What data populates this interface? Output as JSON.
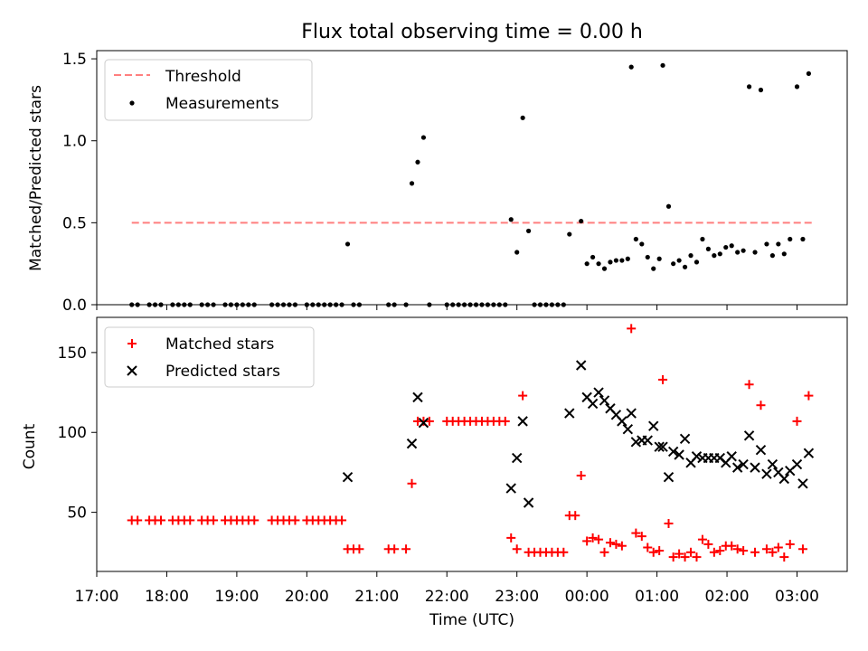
{
  "chart_data": [
    {
      "type": "scatter",
      "title": "Flux total observing time = 0.00 h",
      "xlabel": "",
      "ylabel": "Matched/Predicted stars",
      "ylim": [
        0,
        1.55
      ],
      "yticks": [
        0.0,
        0.5,
        1.0,
        1.5
      ],
      "ytick_labels": [
        "0.0",
        "0.5",
        "1.0",
        "1.5"
      ],
      "xlim": [
        "17:00",
        "03:43"
      ],
      "legend_position": "top-left",
      "threshold": {
        "name": "Threshold",
        "value": 0.5,
        "x": [
          "17:30",
          "03:15"
        ],
        "color": "#ff7f7f"
      },
      "series": [
        {
          "name": "Measurements",
          "color": "#000000",
          "marker": "dot",
          "points": [
            [
              "17:30",
              0
            ],
            [
              "17:35",
              0
            ],
            [
              "17:45",
              0
            ],
            [
              "17:50",
              0
            ],
            [
              "17:55",
              0
            ],
            [
              "18:05",
              0
            ],
            [
              "18:10",
              0
            ],
            [
              "18:15",
              0
            ],
            [
              "18:20",
              0
            ],
            [
              "18:30",
              0
            ],
            [
              "18:35",
              0
            ],
            [
              "18:40",
              0
            ],
            [
              "18:50",
              0
            ],
            [
              "18:55",
              0
            ],
            [
              "19:00",
              0
            ],
            [
              "19:05",
              0
            ],
            [
              "19:10",
              0
            ],
            [
              "19:15",
              0
            ],
            [
              "19:30",
              0
            ],
            [
              "19:35",
              0
            ],
            [
              "19:40",
              0
            ],
            [
              "19:45",
              0
            ],
            [
              "19:50",
              0
            ],
            [
              "20:00",
              0
            ],
            [
              "20:05",
              0
            ],
            [
              "20:10",
              0
            ],
            [
              "20:15",
              0
            ],
            [
              "20:20",
              0
            ],
            [
              "20:25",
              0
            ],
            [
              "20:30",
              0
            ],
            [
              "20:35",
              0.37
            ],
            [
              "20:40",
              0
            ],
            [
              "20:45",
              0
            ],
            [
              "21:10",
              0
            ],
            [
              "21:15",
              0
            ],
            [
              "21:25",
              0
            ],
            [
              "21:30",
              0.74
            ],
            [
              "21:35",
              0.87
            ],
            [
              "21:40",
              1.02
            ],
            [
              "21:45",
              0
            ],
            [
              "22:00",
              0
            ],
            [
              "22:05",
              0
            ],
            [
              "22:10",
              0
            ],
            [
              "22:15",
              0
            ],
            [
              "22:20",
              0
            ],
            [
              "22:25",
              0
            ],
            [
              "22:30",
              0
            ],
            [
              "22:35",
              0
            ],
            [
              "22:40",
              0
            ],
            [
              "22:45",
              0
            ],
            [
              "22:50",
              0
            ],
            [
              "22:55",
              0.52
            ],
            [
              "23:00",
              0.32
            ],
            [
              "23:05",
              1.14
            ],
            [
              "23:10",
              0.45
            ],
            [
              "23:15",
              0
            ],
            [
              "23:20",
              0
            ],
            [
              "23:25",
              0
            ],
            [
              "23:30",
              0
            ],
            [
              "23:35",
              0
            ],
            [
              "23:40",
              0
            ],
            [
              "23:45",
              0.43
            ],
            [
              "23:55",
              0.51
            ],
            [
              "00:00",
              0.25
            ],
            [
              "00:05",
              0.29
            ],
            [
              "00:10",
              0.25
            ],
            [
              "00:15",
              0.22
            ],
            [
              "00:20",
              0.26
            ],
            [
              "00:25",
              0.27
            ],
            [
              "00:30",
              0.27
            ],
            [
              "00:35",
              0.28
            ],
            [
              "00:38",
              1.45
            ],
            [
              "00:42",
              0.4
            ],
            [
              "00:47",
              0.37
            ],
            [
              "00:52",
              0.29
            ],
            [
              "00:57",
              0.22
            ],
            [
              "01:02",
              0.28
            ],
            [
              "01:05",
              1.46
            ],
            [
              "01:10",
              0.6
            ],
            [
              "01:14",
              0.25
            ],
            [
              "01:19",
              0.27
            ],
            [
              "01:24",
              0.23
            ],
            [
              "01:29",
              0.3
            ],
            [
              "01:34",
              0.26
            ],
            [
              "01:39",
              0.4
            ],
            [
              "01:44",
              0.34
            ],
            [
              "01:49",
              0.3
            ],
            [
              "01:54",
              0.31
            ],
            [
              "01:59",
              0.35
            ],
            [
              "02:04",
              0.36
            ],
            [
              "02:09",
              0.32
            ],
            [
              "02:14",
              0.33
            ],
            [
              "02:19",
              1.33
            ],
            [
              "02:24",
              0.32
            ],
            [
              "02:29",
              1.31
            ],
            [
              "02:34",
              0.37
            ],
            [
              "02:39",
              0.3
            ],
            [
              "02:44",
              0.37
            ],
            [
              "02:49",
              0.31
            ],
            [
              "02:54",
              0.4
            ],
            [
              "03:00",
              1.33
            ],
            [
              "03:05",
              0.4
            ],
            [
              "03:10",
              1.41
            ]
          ]
        }
      ]
    },
    {
      "type": "scatter",
      "title": "",
      "xlabel": "Time (UTC)",
      "ylabel": "Count",
      "ylim": [
        13,
        172
      ],
      "yticks": [
        50,
        100,
        150
      ],
      "ytick_labels": [
        "50",
        "100",
        "150"
      ],
      "xticks": [
        "17:00",
        "18:00",
        "19:00",
        "20:00",
        "21:00",
        "22:00",
        "23:00",
        "00:00",
        "01:00",
        "02:00",
        "03:00"
      ],
      "xtick_labels": [
        "17:00",
        "18:00",
        "19:00",
        "20:00",
        "21:00",
        "22:00",
        "23:00",
        "00:00",
        "01:00",
        "02:00",
        "03:00"
      ],
      "legend_position": "top-left",
      "series": [
        {
          "name": "Matched stars",
          "color": "#ff0000",
          "marker": "plus",
          "points": [
            [
              "17:30",
              45
            ],
            [
              "17:35",
              45
            ],
            [
              "17:45",
              45
            ],
            [
              "17:50",
              45
            ],
            [
              "17:55",
              45
            ],
            [
              "18:05",
              45
            ],
            [
              "18:10",
              45
            ],
            [
              "18:15",
              45
            ],
            [
              "18:20",
              45
            ],
            [
              "18:30",
              45
            ],
            [
              "18:35",
              45
            ],
            [
              "18:40",
              45
            ],
            [
              "18:50",
              45
            ],
            [
              "18:55",
              45
            ],
            [
              "19:00",
              45
            ],
            [
              "19:05",
              45
            ],
            [
              "19:10",
              45
            ],
            [
              "19:15",
              45
            ],
            [
              "19:30",
              45
            ],
            [
              "19:35",
              45
            ],
            [
              "19:40",
              45
            ],
            [
              "19:45",
              45
            ],
            [
              "19:50",
              45
            ],
            [
              "20:00",
              45
            ],
            [
              "20:05",
              45
            ],
            [
              "20:10",
              45
            ],
            [
              "20:15",
              45
            ],
            [
              "20:20",
              45
            ],
            [
              "20:25",
              45
            ],
            [
              "20:30",
              45
            ],
            [
              "20:35",
              27
            ],
            [
              "20:40",
              27
            ],
            [
              "20:45",
              27
            ],
            [
              "21:10",
              27
            ],
            [
              "21:15",
              27
            ],
            [
              "21:25",
              27
            ],
            [
              "21:30",
              68
            ],
            [
              "21:35",
              107
            ],
            [
              "21:40",
              107
            ],
            [
              "21:45",
              107
            ],
            [
              "22:00",
              107
            ],
            [
              "22:05",
              107
            ],
            [
              "22:10",
              107
            ],
            [
              "22:15",
              107
            ],
            [
              "22:20",
              107
            ],
            [
              "22:25",
              107
            ],
            [
              "22:30",
              107
            ],
            [
              "22:35",
              107
            ],
            [
              "22:40",
              107
            ],
            [
              "22:45",
              107
            ],
            [
              "22:50",
              107
            ],
            [
              "22:55",
              34
            ],
            [
              "23:00",
              27
            ],
            [
              "23:05",
              123
            ],
            [
              "23:10",
              25
            ],
            [
              "23:15",
              25
            ],
            [
              "23:20",
              25
            ],
            [
              "23:25",
              25
            ],
            [
              "23:30",
              25
            ],
            [
              "23:35",
              25
            ],
            [
              "23:40",
              25
            ],
            [
              "23:45",
              48
            ],
            [
              "23:50",
              48
            ],
            [
              "23:55",
              73
            ],
            [
              "00:00",
              32
            ],
            [
              "00:05",
              34
            ],
            [
              "00:10",
              33
            ],
            [
              "00:15",
              25
            ],
            [
              "00:20",
              31
            ],
            [
              "00:25",
              30
            ],
            [
              "00:30",
              29
            ],
            [
              "00:38",
              165
            ],
            [
              "00:42",
              37
            ],
            [
              "00:47",
              35
            ],
            [
              "00:52",
              28
            ],
            [
              "00:57",
              25
            ],
            [
              "01:02",
              26
            ],
            [
              "01:05",
              133
            ],
            [
              "01:10",
              43
            ],
            [
              "01:14",
              22
            ],
            [
              "01:19",
              24
            ],
            [
              "01:24",
              22
            ],
            [
              "01:29",
              25
            ],
            [
              "01:34",
              22
            ],
            [
              "01:39",
              33
            ],
            [
              "01:44",
              30
            ],
            [
              "01:49",
              25
            ],
            [
              "01:54",
              26
            ],
            [
              "01:59",
              29
            ],
            [
              "02:04",
              29
            ],
            [
              "02:09",
              27
            ],
            [
              "02:14",
              26
            ],
            [
              "02:19",
              130
            ],
            [
              "02:24",
              25
            ],
            [
              "02:29",
              117
            ],
            [
              "02:34",
              27
            ],
            [
              "02:39",
              25
            ],
            [
              "02:44",
              28
            ],
            [
              "02:49",
              22
            ],
            [
              "02:54",
              30
            ],
            [
              "03:00",
              107
            ],
            [
              "03:05",
              27
            ],
            [
              "03:10",
              123
            ]
          ]
        },
        {
          "name": "Predicted stars",
          "color": "#000000",
          "marker": "cross",
          "points": [
            [
              "20:35",
              72
            ],
            [
              "21:30",
              93
            ],
            [
              "21:35",
              122
            ],
            [
              "21:40",
              106
            ],
            [
              "22:55",
              65
            ],
            [
              "23:00",
              84
            ],
            [
              "23:05",
              107
            ],
            [
              "23:10",
              56
            ],
            [
              "23:45",
              112
            ],
            [
              "23:55",
              142
            ],
            [
              "00:00",
              122
            ],
            [
              "00:05",
              118
            ],
            [
              "00:10",
              125
            ],
            [
              "00:15",
              120
            ],
            [
              "00:20",
              115
            ],
            [
              "00:25",
              111
            ],
            [
              "00:30",
              107
            ],
            [
              "00:35",
              102
            ],
            [
              "00:38",
              112
            ],
            [
              "00:42",
              94
            ],
            [
              "00:47",
              95
            ],
            [
              "00:52",
              95
            ],
            [
              "00:57",
              104
            ],
            [
              "01:02",
              91
            ],
            [
              "01:05",
              91
            ],
            [
              "01:10",
              72
            ],
            [
              "01:14",
              88
            ],
            [
              "01:19",
              86
            ],
            [
              "01:24",
              96
            ],
            [
              "01:29",
              81
            ],
            [
              "01:34",
              85
            ],
            [
              "01:39",
              84
            ],
            [
              "01:44",
              84
            ],
            [
              "01:49",
              84
            ],
            [
              "01:54",
              84
            ],
            [
              "01:59",
              81
            ],
            [
              "02:04",
              85
            ],
            [
              "02:09",
              78
            ],
            [
              "02:14",
              80
            ],
            [
              "02:19",
              98
            ],
            [
              "02:24",
              78
            ],
            [
              "02:29",
              89
            ],
            [
              "02:34",
              74
            ],
            [
              "02:39",
              80
            ],
            [
              "02:44",
              75
            ],
            [
              "02:49",
              71
            ],
            [
              "02:54",
              76
            ],
            [
              "03:00",
              80
            ],
            [
              "03:05",
              68
            ],
            [
              "03:10",
              87
            ]
          ]
        }
      ]
    }
  ]
}
